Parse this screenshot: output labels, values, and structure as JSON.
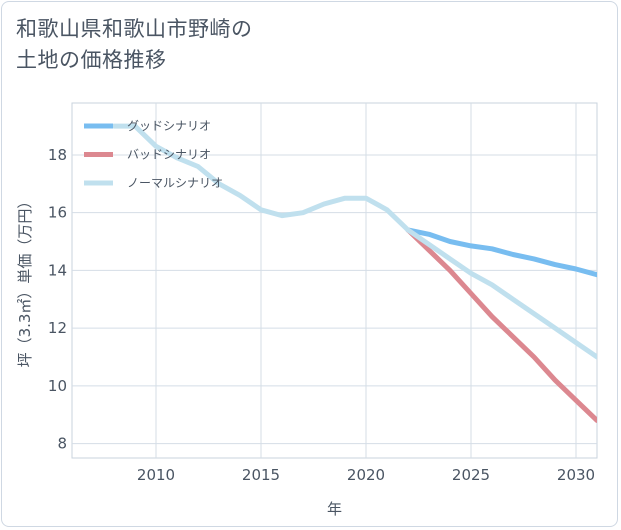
{
  "title_line1": "和歌山県和歌山市野崎の",
  "title_line2": "土地の価格推移",
  "chart_data": {
    "type": "line",
    "xlabel": "年",
    "ylabel": "坪（3.3㎡）単価（万円）",
    "xlim": [
      2006,
      2031
    ],
    "ylim": [
      7.5,
      19.8
    ],
    "x_ticks": [
      2010,
      2015,
      2020,
      2025,
      2030
    ],
    "y_ticks": [
      8,
      10,
      12,
      14,
      16,
      18
    ],
    "grid": true,
    "legend_position": "top-left",
    "series": [
      {
        "name": "グッドシナリオ",
        "color": "#78bdf0",
        "x": [
          2022,
          2023,
          2024,
          2025,
          2026,
          2027,
          2028,
          2029,
          2030,
          2031
        ],
        "values": [
          15.4,
          15.25,
          15.0,
          14.85,
          14.75,
          14.55,
          14.4,
          14.2,
          14.05,
          13.85
        ]
      },
      {
        "name": "バッドシナリオ",
        "color": "#dc8890",
        "x": [
          2022,
          2023,
          2024,
          2025,
          2026,
          2027,
          2028,
          2029,
          2030,
          2031
        ],
        "values": [
          15.4,
          14.7,
          14.0,
          13.2,
          12.4,
          11.7,
          11.0,
          10.2,
          9.5,
          8.8
        ]
      },
      {
        "name": "ノーマルシナリオ",
        "color": "#c0e0ee",
        "x": [
          2008,
          2009,
          2010,
          2011,
          2012,
          2013,
          2014,
          2015,
          2016,
          2017,
          2018,
          2019,
          2020,
          2021,
          2022,
          2023,
          2024,
          2025,
          2026,
          2027,
          2028,
          2029,
          2030,
          2031
        ],
        "values": [
          19.0,
          19.0,
          18.3,
          17.9,
          17.6,
          17.0,
          16.6,
          16.1,
          15.9,
          16.0,
          16.3,
          16.5,
          16.5,
          16.1,
          15.4,
          14.9,
          14.4,
          13.9,
          13.5,
          13.0,
          12.5,
          12.0,
          11.5,
          11.0
        ]
      }
    ]
  }
}
